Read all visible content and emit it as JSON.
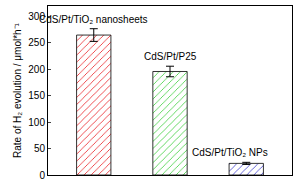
{
  "chart_data": {
    "type": "bar",
    "categories": [
      "CdS/Pt/TiO₂ nanosheets",
      "CdS/Pt/P25",
      "CdS/Pt/TiO₂ NPs"
    ],
    "values": [
      265,
      196,
      22
    ],
    "errors": [
      12,
      10,
      2
    ],
    "colors": [
      "#e8161b",
      "#33cc33",
      "#3333cc"
    ],
    "y_label": "Rate of H₂ evolution / μmol*h⁻¹",
    "ylim": [
      0,
      320
    ],
    "yticks": [
      0,
      50,
      100,
      150,
      200,
      250,
      300
    ],
    "tick_labels": "y",
    "grid": false
  }
}
